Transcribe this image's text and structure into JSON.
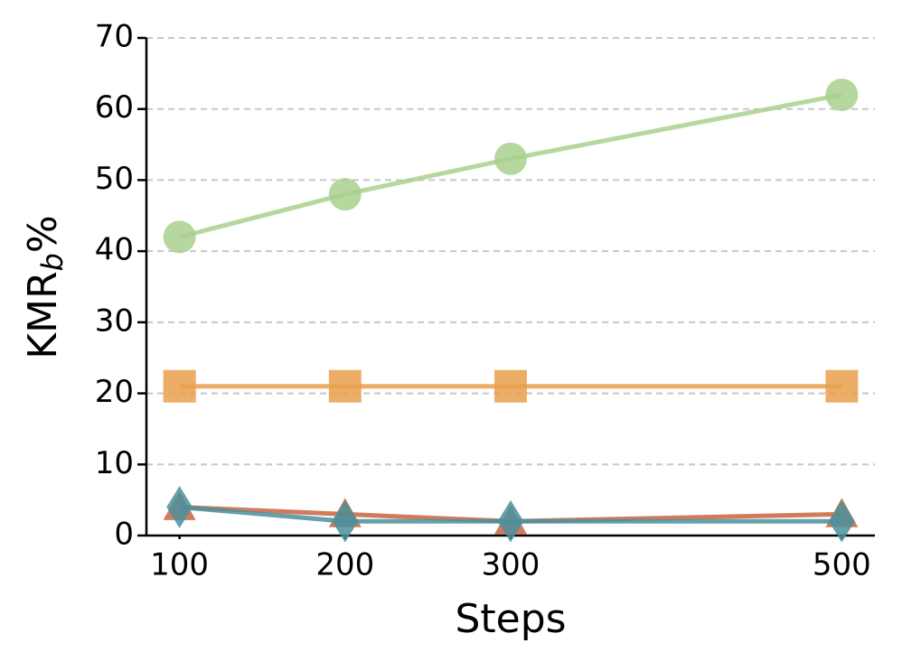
{
  "chart_data": {
    "type": "line",
    "xlabel": "Steps",
    "ylabel": [
      "KMR",
      "b",
      "%"
    ],
    "x": [
      100,
      200,
      300,
      500
    ],
    "xlim": [
      80,
      520
    ],
    "xticks": [
      100,
      200,
      300,
      500
    ],
    "ylim": [
      0,
      70
    ],
    "yticks": [
      0,
      10,
      20,
      30,
      40,
      50,
      60,
      70
    ],
    "grid": true,
    "series": [
      {
        "color": "#a9d18e",
        "marker": "circle",
        "values": [
          42,
          48,
          53,
          62
        ]
      },
      {
        "color": "#e9a04b",
        "marker": "square",
        "values": [
          21,
          21,
          21,
          21
        ]
      },
      {
        "color": "#c9643f",
        "marker": "triangle",
        "values": [
          4,
          3,
          2,
          3
        ]
      },
      {
        "color": "#4a909e",
        "marker": "diamond",
        "values": [
          4,
          2,
          2,
          2
        ]
      }
    ]
  }
}
